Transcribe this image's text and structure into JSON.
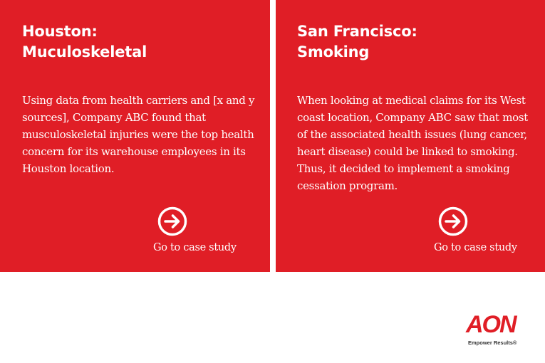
{
  "cards": [
    {
      "title_line1": "Houston:",
      "title_line2": "Muculoskeletal",
      "body": "Using data from health carriers and [x and y sources], Company ABC found that musculoskeletal injuries were the top health concern for its warehouse employees in its Houston location.",
      "cta_label": "Go to case study",
      "cta_icon": "arrow-right-circle-icon"
    },
    {
      "title_line1": "San Francisco:",
      "title_line2": "Smoking",
      "body": "When looking at medical claims for its West coast location, Company ABC saw that most of the associated health issues (lung cancer, heart disease) could be linked to smoking. Thus, it decided to implement a smoking cessation program.",
      "cta_label": "Go to case study",
      "cta_icon": "arrow-right-circle-icon"
    }
  ],
  "brand": {
    "logo_text": "AON",
    "tagline": "Empower Results®"
  },
  "colors": {
    "card_red": "#e01e26",
    "text_on_card": "#ffffff",
    "background": "#ffffff"
  }
}
